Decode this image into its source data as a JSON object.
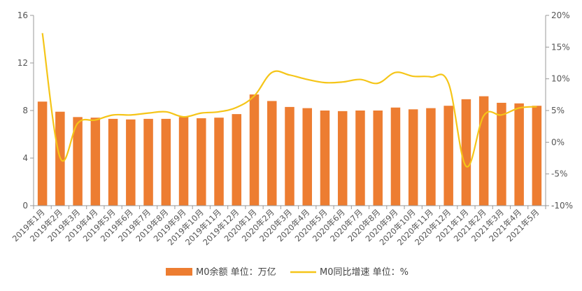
{
  "chart_data": {
    "type": "bar",
    "categories": [
      "2019年1月",
      "2019年2月",
      "2019年3月",
      "2019年4月",
      "2019年5月",
      "2019年6月",
      "2019年7月",
      "2019年8月",
      "2019年9月",
      "2019年10月",
      "2019年11月",
      "2019年12月",
      "2020年1月",
      "2020年2月",
      "2020年3月",
      "2020年4月",
      "2020年5月",
      "2020年6月",
      "2020年7月",
      "2020年8月",
      "2020年9月",
      "2020年10月",
      "2020年11月",
      "2020年12月",
      "2021年1月",
      "2021年2月",
      "2021年3月",
      "2021年4月",
      "2021年5月"
    ],
    "series": [
      {
        "name": "M0余额 单位：万亿",
        "type": "bar",
        "axis": "left",
        "color": "#ED7D31",
        "values": [
          8.75,
          7.9,
          7.45,
          7.4,
          7.3,
          7.25,
          7.3,
          7.3,
          7.45,
          7.35,
          7.4,
          7.7,
          9.35,
          8.8,
          8.3,
          8.2,
          8.0,
          7.95,
          8.0,
          8.0,
          8.25,
          8.1,
          8.2,
          8.4,
          8.95,
          9.2,
          8.65,
          8.6,
          8.4
        ]
      },
      {
        "name": "M0同比增速 单位：%",
        "type": "line",
        "axis": "right",
        "color": "#F5C518",
        "values": [
          17.2,
          -2.4,
          3.0,
          3.5,
          4.3,
          4.3,
          4.6,
          4.8,
          4.0,
          4.6,
          4.8,
          5.5,
          7.3,
          11.0,
          10.6,
          9.9,
          9.4,
          9.5,
          9.9,
          9.3,
          11.0,
          10.4,
          10.3,
          9.3,
          -3.8,
          4.2,
          4.3,
          5.4,
          5.6
        ]
      }
    ],
    "y_left": {
      "ticks": [
        "0",
        "4",
        "8",
        "12",
        "16"
      ],
      "min": 0,
      "max": 16
    },
    "y_right": {
      "ticks": [
        "-10%",
        "-5%",
        "0%",
        "5%",
        "10%",
        "15%",
        "20%"
      ],
      "min": -10,
      "max": 20
    },
    "legend_position": "bottom-center",
    "grid": false
  }
}
